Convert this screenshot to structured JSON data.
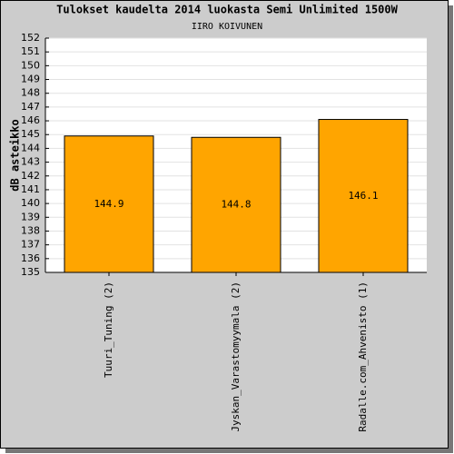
{
  "chart_data": {
    "type": "bar",
    "title": "Tulokset kaudelta 2014 luokasta Semi Unlimited 1500W",
    "subtitle": "IIRO KOIVUNEN",
    "y_label": "dB asteikko",
    "categories": [
      "Tuuri_Tuning (2)",
      "Jyskan_Varastomyymala (2)",
      "Radalle.com_Ahvenisto (1)"
    ],
    "values": [
      144.9,
      144.8,
      146.1
    ],
    "color": "#ffa500",
    "ylim": [
      135,
      152
    ],
    "yticks": [
      135,
      136,
      137,
      138,
      139,
      140,
      141,
      142,
      143,
      144,
      145,
      146,
      147,
      148,
      149,
      150,
      151,
      152
    ],
    "grid": true
  }
}
